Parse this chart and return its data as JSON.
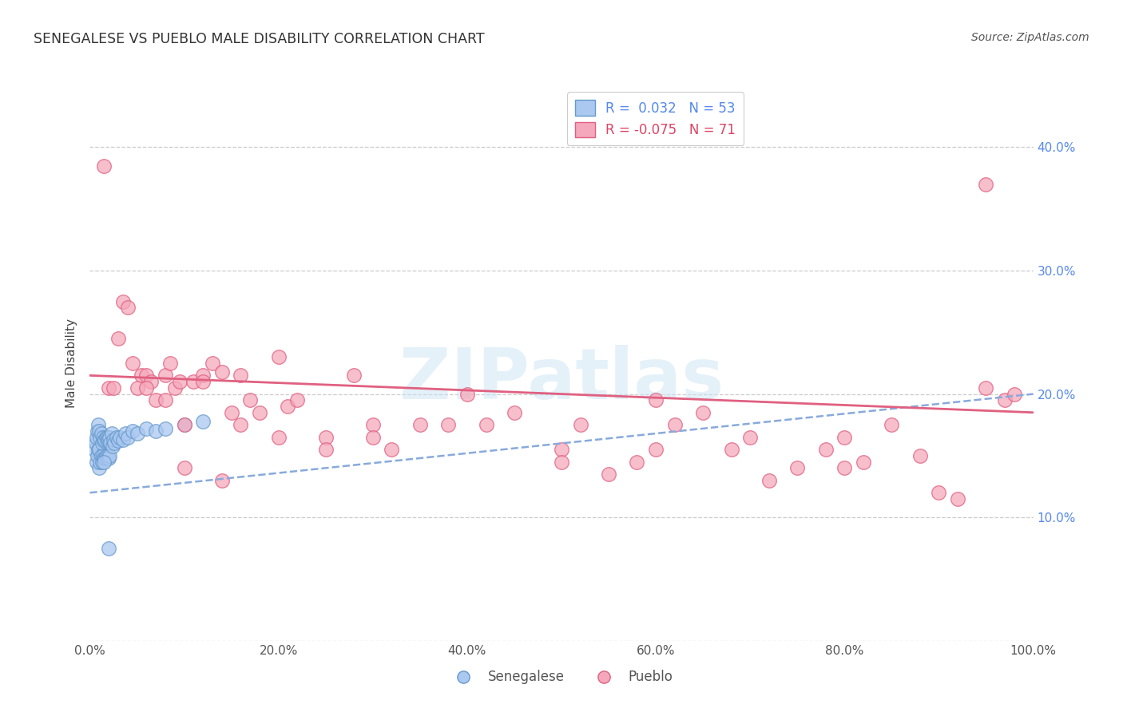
{
  "title": "SENEGALESE VS PUEBLO MALE DISABILITY CORRELATION CHART",
  "source": "Source: ZipAtlas.com",
  "ylabel": "Male Disability",
  "legend_bottom": [
    "Senegalese",
    "Pueblo"
  ],
  "r_senegalese": 0.032,
  "n_senegalese": 53,
  "r_pueblo": -0.075,
  "n_pueblo": 71,
  "color_senegalese": "#aac8f0",
  "color_pueblo": "#f5a8bc",
  "edge_senegalese": "#6699cc",
  "edge_pueblo": "#e06080",
  "trend_senegalese_color": "#88aadd",
  "trend_pueblo_color": "#e06080",
  "xlim": [
    0.0,
    1.0
  ],
  "ylim": [
    0.0,
    0.45
  ],
  "xticks": [
    0.0,
    0.2,
    0.4,
    0.6,
    0.8,
    1.0
  ],
  "yticks": [
    0.0,
    0.1,
    0.2,
    0.3,
    0.4
  ],
  "right_ytick_labels": [
    "",
    "10.0%",
    "20.0%",
    "30.0%",
    "40.0%"
  ],
  "xtick_labels": [
    "0.0%",
    "20.0%",
    "40.0%",
    "60.0%",
    "80.0%",
    "100.0%"
  ],
  "watermark_text": "ZIPatlas",
  "senegalese_trend_x0": 0.0,
  "senegalese_trend_y0": 0.12,
  "senegalese_trend_x1": 1.0,
  "senegalese_trend_y1": 0.2,
  "pueblo_trend_x0": 0.0,
  "pueblo_trend_y0": 0.215,
  "pueblo_trend_x1": 1.0,
  "pueblo_trend_y1": 0.185,
  "senegalese_x": [
    0.005,
    0.006,
    0.007,
    0.007,
    0.008,
    0.008,
    0.009,
    0.009,
    0.01,
    0.01,
    0.01,
    0.011,
    0.011,
    0.012,
    0.012,
    0.013,
    0.013,
    0.014,
    0.014,
    0.015,
    0.015,
    0.016,
    0.016,
    0.017,
    0.017,
    0.018,
    0.018,
    0.019,
    0.019,
    0.02,
    0.02,
    0.021,
    0.021,
    0.022,
    0.023,
    0.024,
    0.025,
    0.026,
    0.028,
    0.03,
    0.032,
    0.035,
    0.038,
    0.04,
    0.045,
    0.05,
    0.06,
    0.07,
    0.08,
    0.1,
    0.12,
    0.02,
    0.015
  ],
  "senegalese_y": [
    0.155,
    0.16,
    0.145,
    0.165,
    0.15,
    0.17,
    0.155,
    0.175,
    0.14,
    0.155,
    0.17,
    0.145,
    0.165,
    0.15,
    0.168,
    0.145,
    0.16,
    0.15,
    0.165,
    0.148,
    0.162,
    0.148,
    0.163,
    0.15,
    0.165,
    0.148,
    0.163,
    0.15,
    0.165,
    0.148,
    0.163,
    0.15,
    0.165,
    0.16,
    0.168,
    0.158,
    0.163,
    0.16,
    0.165,
    0.162,
    0.165,
    0.163,
    0.168,
    0.165,
    0.17,
    0.168,
    0.172,
    0.17,
    0.172,
    0.175,
    0.178,
    0.075,
    0.145
  ],
  "pueblo_x": [
    0.015,
    0.02,
    0.025,
    0.03,
    0.035,
    0.04,
    0.045,
    0.05,
    0.055,
    0.06,
    0.065,
    0.07,
    0.08,
    0.085,
    0.09,
    0.095,
    0.1,
    0.11,
    0.12,
    0.13,
    0.14,
    0.15,
    0.16,
    0.17,
    0.18,
    0.2,
    0.21,
    0.22,
    0.25,
    0.28,
    0.3,
    0.32,
    0.35,
    0.38,
    0.4,
    0.42,
    0.45,
    0.5,
    0.52,
    0.55,
    0.58,
    0.6,
    0.62,
    0.65,
    0.68,
    0.7,
    0.72,
    0.75,
    0.78,
    0.8,
    0.82,
    0.85,
    0.88,
    0.9,
    0.92,
    0.95,
    0.97,
    0.98,
    0.06,
    0.08,
    0.1,
    0.12,
    0.14,
    0.16,
    0.2,
    0.25,
    0.3,
    0.5,
    0.6,
    0.8,
    0.95
  ],
  "pueblo_y": [
    0.385,
    0.205,
    0.205,
    0.245,
    0.275,
    0.27,
    0.225,
    0.205,
    0.215,
    0.215,
    0.21,
    0.195,
    0.215,
    0.225,
    0.205,
    0.21,
    0.175,
    0.21,
    0.215,
    0.225,
    0.218,
    0.185,
    0.215,
    0.195,
    0.185,
    0.23,
    0.19,
    0.195,
    0.165,
    0.215,
    0.175,
    0.155,
    0.175,
    0.175,
    0.2,
    0.175,
    0.185,
    0.155,
    0.175,
    0.135,
    0.145,
    0.195,
    0.175,
    0.185,
    0.155,
    0.165,
    0.13,
    0.14,
    0.155,
    0.165,
    0.145,
    0.175,
    0.15,
    0.12,
    0.115,
    0.205,
    0.195,
    0.2,
    0.205,
    0.195,
    0.14,
    0.21,
    0.13,
    0.175,
    0.165,
    0.155,
    0.165,
    0.145,
    0.155,
    0.14,
    0.37
  ]
}
